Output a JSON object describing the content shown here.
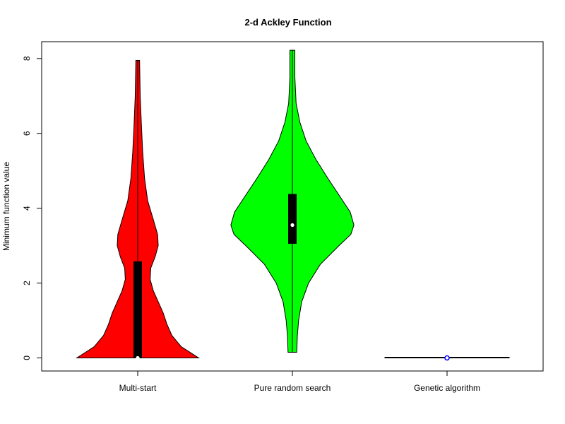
{
  "chart_data": {
    "type": "violin",
    "title": "2-d Ackley Function",
    "xlabel": "",
    "ylabel": "Minimum function value",
    "ylim": [
      -0.35,
      8.45
    ],
    "yticks": [
      "0",
      "2",
      "4",
      "6",
      "8"
    ],
    "grid": false,
    "legend": "none",
    "categories": [
      "Multi-start",
      "Pure random search",
      "Genetic algorithm"
    ],
    "series": [
      {
        "color": "#ff0000",
        "min": 0.0,
        "max": 7.95,
        "q1": 0.0,
        "median": 0.0,
        "q3": 2.58,
        "profile": [
          [
            0.0,
            0.98
          ],
          [
            0.3,
            0.7
          ],
          [
            0.6,
            0.55
          ],
          [
            0.9,
            0.47
          ],
          [
            1.2,
            0.41
          ],
          [
            1.5,
            0.33
          ],
          [
            1.8,
            0.25
          ],
          [
            2.1,
            0.2
          ],
          [
            2.4,
            0.21
          ],
          [
            2.7,
            0.28
          ],
          [
            3.0,
            0.33
          ],
          [
            3.3,
            0.32
          ],
          [
            3.7,
            0.25
          ],
          [
            4.2,
            0.16
          ],
          [
            4.8,
            0.11
          ],
          [
            5.5,
            0.08
          ],
          [
            6.2,
            0.06
          ],
          [
            7.0,
            0.04
          ],
          [
            7.95,
            0.03
          ]
        ]
      },
      {
        "color": "#00ff00",
        "min": 0.15,
        "max": 8.22,
        "q1": 3.05,
        "median": 3.55,
        "q3": 4.38,
        "profile": [
          [
            0.15,
            0.07
          ],
          [
            0.6,
            0.08
          ],
          [
            1.0,
            0.1
          ],
          [
            1.5,
            0.15
          ],
          [
            2.0,
            0.26
          ],
          [
            2.5,
            0.45
          ],
          [
            3.0,
            0.75
          ],
          [
            3.3,
            0.94
          ],
          [
            3.55,
            0.99
          ],
          [
            3.9,
            0.93
          ],
          [
            4.3,
            0.77
          ],
          [
            4.8,
            0.57
          ],
          [
            5.3,
            0.38
          ],
          [
            5.8,
            0.22
          ],
          [
            6.3,
            0.12
          ],
          [
            6.8,
            0.06
          ],
          [
            7.5,
            0.04
          ],
          [
            8.22,
            0.04
          ]
        ]
      },
      {
        "color": "#0000ff",
        "min": 0.0,
        "max": 0.03,
        "q1": 0.0,
        "median": 0.0,
        "q3": 0.02,
        "profile": [
          [
            0.0,
            1.0
          ],
          [
            0.01,
            0.5
          ],
          [
            0.03,
            0.0
          ]
        ]
      }
    ]
  }
}
